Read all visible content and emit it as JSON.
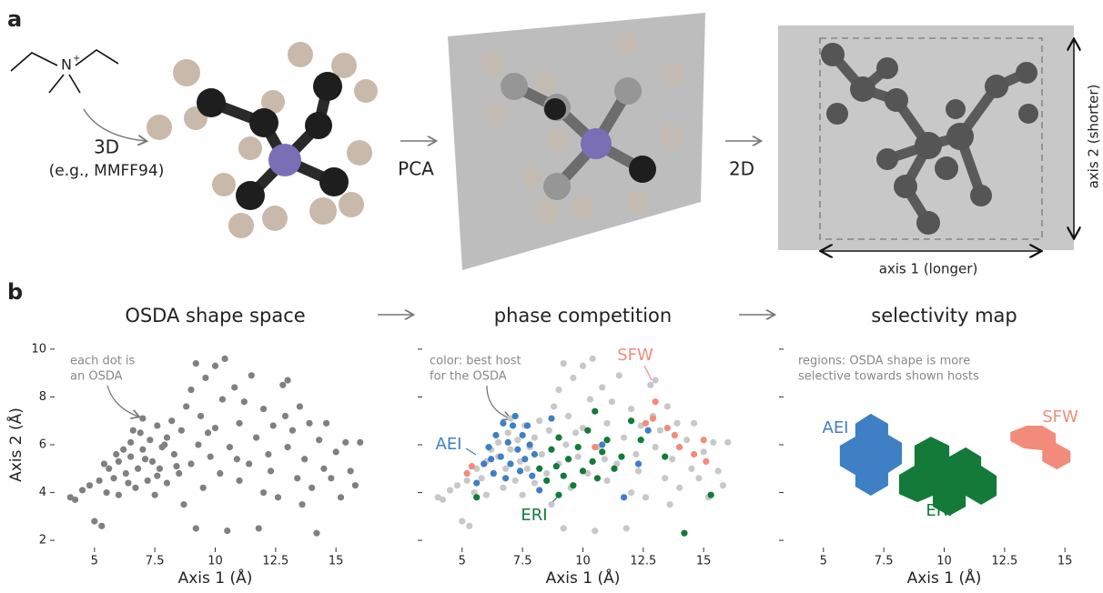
{
  "panel_a": {
    "label": "a",
    "atom": "N",
    "charge": "+",
    "step1": "3D",
    "step1_note": "(e.g., MMFF94)",
    "step2": "PCA",
    "step3": "2D",
    "axis1": "axis 1 (longer)",
    "axis2": "axis 2 (shorter)"
  },
  "panel_b": {
    "label": "b"
  },
  "chart_data": [
    {
      "type": "scatter",
      "title": "OSDA shape space",
      "xlabel": "Axis 1 (Å)",
      "ylabel": "Axis 2 (Å)",
      "annotation": [
        "each dot is",
        "an OSDA"
      ],
      "xlim": [
        3.5,
        16.5
      ],
      "xticks": [
        5,
        7.5,
        10,
        12.5,
        15
      ],
      "ylim": [
        1.7,
        10.3
      ],
      "yticks": [
        2,
        4,
        6,
        8,
        10
      ],
      "show_ytick_labels": true,
      "series": [
        {
          "color": "#808080",
          "x": [
            4.0,
            4.2,
            4.5,
            4.8,
            5.0,
            5.3,
            5.2,
            5.5,
            5.6,
            5.8,
            6.0,
            6.0,
            6.2,
            6.3,
            6.5,
            6.5,
            6.7,
            6.8,
            6.9,
            7.0,
            7.0,
            7.2,
            7.3,
            7.4,
            7.5,
            7.6,
            7.7,
            7.8,
            8.0,
            8.0,
            8.2,
            8.3,
            8.5,
            8.6,
            8.7,
            8.8,
            9.0,
            9.0,
            9.2,
            9.2,
            9.3,
            9.4,
            9.5,
            9.6,
            9.8,
            10.0,
            10.0,
            10.2,
            10.3,
            10.4,
            10.5,
            10.6,
            10.8,
            11.0,
            11.0,
            11.2,
            11.4,
            11.5,
            11.7,
            11.8,
            12.0,
            12.0,
            12.2,
            12.4,
            12.6,
            12.8,
            12.9,
            13.0,
            13.0,
            13.2,
            13.4,
            13.5,
            13.7,
            13.9,
            14.0,
            14.2,
            14.3,
            14.5,
            14.6,
            14.8,
            15.0,
            15.2,
            15.4,
            15.6,
            15.8,
            16.0,
            5.9,
            6.6,
            7.1,
            7.9,
            8.4,
            6.4,
            7.6,
            5.4,
            9.7,
            10.9,
            12.3,
            13.6
          ],
          "y": [
            3.8,
            3.7,
            4.1,
            4.3,
            2.8,
            2.6,
            4.5,
            4.0,
            5.0,
            4.6,
            5.3,
            3.9,
            5.8,
            4.8,
            5.5,
            6.1,
            4.2,
            5.0,
            6.5,
            5.8,
            7.1,
            4.5,
            6.2,
            5.3,
            3.9,
            6.8,
            5.0,
            5.9,
            6.3,
            4.4,
            7.0,
            5.6,
            4.8,
            6.6,
            3.5,
            7.6,
            8.3,
            5.2,
            9.4,
            2.5,
            6.0,
            7.2,
            4.2,
            8.8,
            5.5,
            9.3,
            6.7,
            4.8,
            7.9,
            9.6,
            2.4,
            5.9,
            8.4,
            6.9,
            4.5,
            7.8,
            5.2,
            8.9,
            6.3,
            2.5,
            7.5,
            4.0,
            5.6,
            6.8,
            3.8,
            8.5,
            7.2,
            5.9,
            8.7,
            6.6,
            4.6,
            7.6,
            5.4,
            6.9,
            4.2,
            2.3,
            6.2,
            5.0,
            6.9,
            4.6,
            5.7,
            3.8,
            6.1,
            4.9,
            4.3,
            6.1,
            5.6,
            6.6,
            5.4,
            6.0,
            5.1,
            4.4,
            4.7,
            5.2,
            6.5,
            5.4,
            4.9,
            3.5
          ]
        }
      ]
    },
    {
      "type": "scatter",
      "title": "phase competition",
      "xlabel": "Axis 1 (Å)",
      "annotation": [
        "color: best host",
        "for the OSDA"
      ],
      "xlim": [
        3.5,
        16.5
      ],
      "xticks": [
        5,
        7.5,
        10,
        12.5,
        15
      ],
      "ylim": [
        1.7,
        10.3
      ],
      "yticks": [
        2,
        4,
        6,
        8,
        10
      ],
      "show_ytick_labels": false,
      "series": [
        {
          "color": "#c8c8c8",
          "x": [
            4.0,
            4.2,
            4.5,
            4.8,
            5.0,
            5.3,
            5.2,
            5.5,
            5.6,
            5.8,
            6.0,
            6.0,
            6.2,
            6.3,
            6.5,
            6.5,
            6.7,
            6.8,
            6.9,
            7.0,
            7.0,
            7.2,
            7.3,
            7.4,
            7.5,
            7.6,
            7.7,
            7.8,
            8.0,
            8.0,
            8.2,
            8.3,
            8.5,
            8.6,
            8.7,
            8.8,
            9.0,
            9.0,
            9.2,
            9.2,
            9.3,
            9.4,
            9.5,
            9.6,
            9.8,
            10.0,
            10.0,
            10.2,
            10.3,
            10.4,
            10.5,
            10.6,
            10.8,
            11.0,
            11.0,
            11.2,
            11.4,
            11.5,
            11.7,
            11.8,
            12.0,
            12.0,
            12.2,
            12.4,
            12.6,
            12.8,
            12.9,
            13.0,
            13.0,
            13.2,
            13.4,
            13.5,
            13.7,
            13.9,
            14.0,
            14.3,
            14.5,
            14.6,
            14.8,
            15.0,
            15.2,
            15.4,
            15.6,
            15.8,
            16.0,
            9.7,
            10.9,
            12.3,
            13.6
          ],
          "y": [
            3.8,
            3.7,
            4.1,
            4.3,
            2.8,
            2.6,
            4.5,
            4.0,
            5.0,
            4.6,
            5.3,
            3.9,
            5.8,
            4.8,
            5.5,
            6.1,
            4.2,
            5.0,
            6.5,
            5.8,
            7.1,
            4.5,
            6.2,
            5.3,
            3.9,
            6.8,
            5.0,
            5.9,
            6.3,
            4.4,
            7.0,
            5.6,
            4.8,
            6.6,
            3.5,
            7.6,
            8.3,
            5.2,
            9.4,
            2.5,
            6.0,
            7.2,
            4.2,
            8.8,
            5.5,
            9.3,
            6.7,
            4.8,
            7.9,
            9.6,
            2.4,
            5.9,
            8.4,
            6.9,
            4.5,
            7.8,
            5.2,
            8.9,
            6.3,
            2.5,
            7.5,
            4.0,
            5.6,
            6.8,
            3.8,
            8.5,
            7.2,
            5.9,
            8.7,
            6.6,
            4.6,
            7.6,
            5.4,
            6.9,
            4.2,
            6.2,
            5.0,
            6.9,
            4.6,
            5.7,
            3.8,
            6.1,
            4.9,
            4.3,
            6.1,
            6.5,
            5.4,
            4.9,
            3.5
          ]
        },
        {
          "name": "AEI",
          "color": "#3f7fc4",
          "x": [
            5.6,
            5.9,
            6.1,
            6.3,
            6.4,
            6.6,
            6.8,
            6.9,
            7.0,
            7.1,
            7.2,
            7.3,
            7.4,
            7.5,
            7.6,
            7.8,
            7.9,
            8.0,
            6.2,
            6.7,
            7.7,
            8.7,
            10.8,
            11.7,
            12.3,
            12.7,
            8.2
          ],
          "y": [
            4.4,
            5.2,
            5.9,
            4.8,
            6.4,
            5.5,
            4.6,
            6.1,
            5.2,
            6.8,
            7.2,
            5.8,
            4.9,
            6.4,
            5.4,
            6.0,
            4.7,
            5.6,
            5.4,
            6.9,
            6.8,
            7.1,
            6.0,
            3.8,
            5.2,
            6.6,
            4.1
          ]
        },
        {
          "name": "ERI",
          "color": "#137a3a",
          "x": [
            8.2,
            8.5,
            8.7,
            8.9,
            9.0,
            9.2,
            9.4,
            9.6,
            9.8,
            10.0,
            10.2,
            10.4,
            10.6,
            10.8,
            11.0,
            11.3,
            11.6,
            12.0,
            12.4,
            9.0,
            10.5,
            5.6,
            14.2,
            15.3,
            13.4
          ],
          "y": [
            5.0,
            4.5,
            5.8,
            5.1,
            6.3,
            4.7,
            5.4,
            4.3,
            5.9,
            4.9,
            6.6,
            5.3,
            4.6,
            5.7,
            6.2,
            5.0,
            5.5,
            7.0,
            6.2,
            3.9,
            7.4,
            3.8,
            2.3,
            3.9,
            5.5
          ]
        },
        {
          "name": "SFW",
          "color": "#f28b7a",
          "x": [
            5.2,
            5.4,
            10.5,
            12.6,
            12.9,
            13.0,
            13.5,
            14.0,
            14.6,
            15.0,
            15.1,
            13.8
          ],
          "y": [
            4.8,
            5.1,
            5.9,
            6.9,
            7.1,
            7.8,
            6.7,
            5.9,
            5.6,
            6.2,
            5.3,
            6.4
          ]
        }
      ]
    },
    {
      "type": "region",
      "title": "selectivity map",
      "xlabel": "Axis 1 (Å)",
      "annotation": [
        "regions: OSDA shape is more",
        "selective towards shown hosts"
      ],
      "xlim": [
        3.5,
        16.5
      ],
      "xticks": [
        5,
        7.5,
        10,
        12.5,
        15
      ],
      "ylim": [
        1.7,
        10.3
      ],
      "yticks": [
        2,
        4,
        6,
        8,
        10
      ],
      "show_ytick_labels": false,
      "series": [
        {
          "name": "AEI",
          "color": "#3f7fc4",
          "x": [
            6.96,
            7.68,
            7.68,
            8.25,
            8.25,
            7.68,
            7.68,
            6.96,
            6.32,
            6.32,
            5.68,
            5.68,
            6.32,
            6.32
          ],
          "y": [
            7.3,
            6.88,
            6.42,
            6.08,
            5.2,
            4.82,
            4.29,
            3.87,
            4.25,
            4.74,
            5.12,
            5.96,
            6.34,
            6.88
          ]
        },
        {
          "name": "ERI",
          "color": "#137a3a",
          "x": [
            9.45,
            10.21,
            10.21,
            10.89,
            11.53,
            11.53,
            12.17,
            12.17,
            11.53,
            10.89,
            10.89,
            10.21,
            9.53,
            9.53,
            8.89,
            8.13,
            8.13,
            8.77,
            8.77
          ],
          "y": [
            6.34,
            5.96,
            5.5,
            5.89,
            5.5,
            5.12,
            4.7,
            3.87,
            3.49,
            3.87,
            3.41,
            3.03,
            3.41,
            3.87,
            3.6,
            3.94,
            4.74,
            5.12,
            5.96
          ]
        },
        {
          "name": "SFW",
          "color": "#f28b7a",
          "x": [
            14.06,
            14.62,
            14.62,
            15.23,
            15.23,
            14.66,
            14.06,
            14.06,
            13.3,
            12.74,
            12.74,
            13.42
          ],
          "y": [
            6.8,
            6.46,
            6.08,
            5.73,
            5.28,
            4.97,
            5.31,
            5.77,
            5.85,
            6.15,
            6.53,
            6.8
          ]
        }
      ]
    }
  ]
}
